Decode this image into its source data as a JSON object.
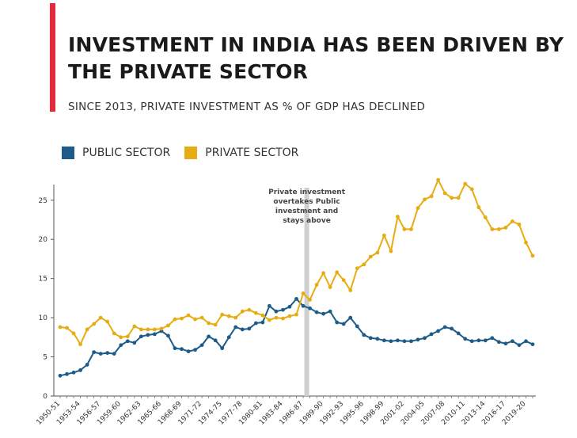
{
  "header": {
    "title": "INVESTMENT IN INDIA HAS BEEN DRIVEN BY THE PRIVATE SECTOR",
    "subtitle": "SINCE 2013, PRIVATE INVESTMENT AS % OF GDP HAS DECLINED",
    "accent_color": "#e8263a"
  },
  "chart_data": {
    "type": "line",
    "title": "INVESTMENT IN INDIA HAS BEEN DRIVEN BY THE PRIVATE SECTOR",
    "subtitle": "SINCE 2013, PRIVATE INVESTMENT AS % OF GDP HAS DECLINED",
    "xlabel": "",
    "ylabel": "",
    "ylim": [
      0,
      27
    ],
    "yticks": [
      0,
      5,
      10,
      15,
      20,
      25
    ],
    "grid": false,
    "legend_position": "top-left",
    "annotation": {
      "text_lines": [
        "Private investment",
        "overtakes Public",
        "investment and",
        "stays above"
      ],
      "at_year": "1987-88"
    },
    "x": [
      "1950-51",
      "1951-52",
      "1952-53",
      "1953-54",
      "1954-55",
      "1955-56",
      "1956-57",
      "1957-58",
      "1958-59",
      "1959-60",
      "1960-61",
      "1961-62",
      "1962-63",
      "1963-64",
      "1964-65",
      "1965-66",
      "1966-67",
      "1967-68",
      "1968-69",
      "1969-70",
      "1970-71",
      "1971-72",
      "1972-73",
      "1973-74",
      "1974-75",
      "1975-76",
      "1976-77",
      "1977-78",
      "1978-79",
      "1979-80",
      "1980-81",
      "1981-82",
      "1982-83",
      "1983-84",
      "1984-85",
      "1985-86",
      "1986-87",
      "1987-88",
      "1988-89",
      "1989-90",
      "1990-91",
      "1991-92",
      "1992-93",
      "1993-94",
      "1994-95",
      "1995-96",
      "1996-97",
      "1997-98",
      "1998-99",
      "1999-00",
      "2000-01",
      "2001-02",
      "2002-03",
      "2003-04",
      "2004-05",
      "2005-06",
      "2006-07",
      "2007-08",
      "2008-09",
      "2009-10",
      "2010-11",
      "2011-12",
      "2012-13",
      "2013-14",
      "2014-15",
      "2015-16",
      "2016-17",
      "2017-18",
      "2018-19",
      "2019-20",
      "2020-21"
    ],
    "x_tick_labels": [
      "1950-51",
      "1953-54",
      "1956-57",
      "1959-60",
      "1962-63",
      "1965-66",
      "1968-69",
      "1971-72",
      "1974-75",
      "1977-78",
      "1980-81",
      "1983-84",
      "1986-87",
      "1989-90",
      "1992-93",
      "1995-96",
      "1998-99",
      "2001-02",
      "2004-05",
      "2007-08",
      "2010-11",
      "2013-14",
      "2016-17",
      "2019-20"
    ],
    "series": [
      {
        "name": "PUBLIC SECTOR",
        "color": "#1d5b8a",
        "values": [
          2.6,
          2.8,
          3.0,
          3.3,
          4.0,
          5.6,
          5.4,
          5.5,
          5.4,
          6.5,
          7.0,
          6.8,
          7.6,
          7.8,
          7.9,
          8.3,
          7.7,
          6.1,
          6.0,
          5.7,
          5.9,
          6.5,
          7.6,
          7.1,
          6.1,
          7.5,
          8.8,
          8.5,
          8.6,
          9.3,
          9.4,
          11.5,
          10.8,
          11.0,
          11.4,
          12.4,
          11.5,
          11.2,
          10.7,
          10.5,
          10.8,
          9.4,
          9.2,
          10.0,
          8.9,
          7.8,
          7.4,
          7.3,
          7.1,
          7.0,
          7.1,
          7.0,
          7.0,
          7.2,
          7.4,
          7.9,
          8.3,
          8.8,
          8.6,
          8.0,
          7.3,
          7.0,
          7.1,
          7.1,
          7.4,
          6.9,
          6.7,
          7.0,
          6.5,
          7.0,
          6.6
        ]
      },
      {
        "name": "PRIVATE SECTOR",
        "color": "#e6ad12",
        "values": [
          8.8,
          8.7,
          8.0,
          6.6,
          8.5,
          9.2,
          10.0,
          9.5,
          8.0,
          7.5,
          7.6,
          8.9,
          8.5,
          8.5,
          8.5,
          8.6,
          9.0,
          9.8,
          9.9,
          10.3,
          9.8,
          10.0,
          9.3,
          9.1,
          10.4,
          10.2,
          10.0,
          10.8,
          11.0,
          10.6,
          10.3,
          9.7,
          10.0,
          9.9,
          10.2,
          10.4,
          13.1,
          12.3,
          14.2,
          15.7,
          13.9,
          15.8,
          14.8,
          13.5,
          16.3,
          16.8,
          17.8,
          18.3,
          20.5,
          18.5,
          22.9,
          21.3,
          21.3,
          24.0,
          25.1,
          25.5,
          27.6,
          25.9,
          25.3,
          25.3,
          27.1,
          26.4,
          24.1,
          22.8,
          21.3,
          21.3,
          21.5,
          22.3,
          21.9,
          19.6,
          17.9
        ]
      }
    ]
  }
}
